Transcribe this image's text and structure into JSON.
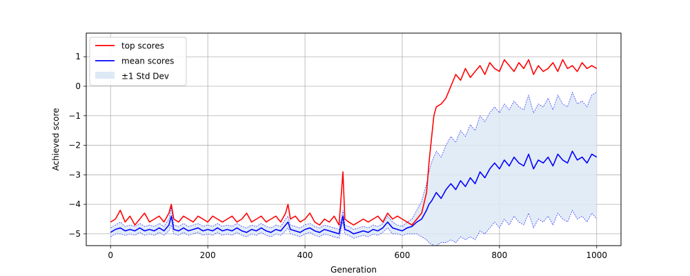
{
  "chart_data": {
    "type": "line",
    "title": "",
    "xlabel": "Generation",
    "ylabel": "Achieved score",
    "xlim": [
      -50,
      1050
    ],
    "ylim": [
      -5.4,
      1.8
    ],
    "xticks": [
      0,
      200,
      400,
      600,
      800,
      1000
    ],
    "yticks": [
      -5,
      -4,
      -3,
      -2,
      -1,
      0,
      1
    ],
    "xtick_labels": [
      "0",
      "200",
      "400",
      "600",
      "800",
      "1000"
    ],
    "ytick_labels": [
      "−5",
      "−4",
      "−3",
      "−2",
      "−1",
      "0",
      "1"
    ],
    "grid": true,
    "legend_position": "top-left",
    "colors": {
      "top": "#ff0000",
      "mean": "#0000ff",
      "band": "#dde9f5"
    },
    "series": [
      {
        "name": "top scores",
        "x": [
          0,
          10,
          20,
          30,
          40,
          50,
          60,
          70,
          80,
          90,
          100,
          110,
          120,
          125,
          130,
          140,
          150,
          160,
          170,
          180,
          190,
          200,
          210,
          220,
          230,
          240,
          250,
          260,
          270,
          280,
          290,
          300,
          310,
          320,
          330,
          340,
          350,
          360,
          365,
          370,
          380,
          390,
          400,
          410,
          420,
          430,
          440,
          450,
          460,
          470,
          478,
          482,
          490,
          500,
          510,
          520,
          530,
          540,
          550,
          560,
          570,
          580,
          590,
          600,
          610,
          620,
          630,
          640,
          650,
          655,
          660,
          665,
          670,
          680,
          690,
          700,
          710,
          720,
          730,
          740,
          750,
          760,
          770,
          780,
          790,
          800,
          810,
          820,
          830,
          840,
          850,
          860,
          870,
          880,
          890,
          900,
          910,
          920,
          930,
          940,
          950,
          960,
          970,
          980,
          990,
          1000
        ],
        "values": [
          -4.6,
          -4.5,
          -4.2,
          -4.6,
          -4.4,
          -4.7,
          -4.5,
          -4.3,
          -4.6,
          -4.5,
          -4.4,
          -4.6,
          -4.3,
          -4.0,
          -4.5,
          -4.6,
          -4.4,
          -4.5,
          -4.6,
          -4.4,
          -4.5,
          -4.6,
          -4.4,
          -4.5,
          -4.6,
          -4.5,
          -4.4,
          -4.6,
          -4.5,
          -4.3,
          -4.6,
          -4.5,
          -4.4,
          -4.6,
          -4.5,
          -4.4,
          -4.6,
          -4.3,
          -4.0,
          -4.5,
          -4.4,
          -4.6,
          -4.5,
          -4.3,
          -4.6,
          -4.7,
          -4.5,
          -4.6,
          -4.4,
          -4.7,
          -2.9,
          -4.5,
          -4.6,
          -4.7,
          -4.6,
          -4.5,
          -4.6,
          -4.5,
          -4.4,
          -4.6,
          -4.3,
          -4.5,
          -4.4,
          -4.5,
          -4.6,
          -4.7,
          -4.5,
          -4.3,
          -3.6,
          -2.6,
          -1.8,
          -1.0,
          -0.7,
          -0.6,
          -0.4,
          0.0,
          0.4,
          0.2,
          0.6,
          0.3,
          0.5,
          0.7,
          0.4,
          0.8,
          0.6,
          0.5,
          0.9,
          0.7,
          0.5,
          0.8,
          0.6,
          0.9,
          0.4,
          0.7,
          0.5,
          0.6,
          0.8,
          0.5,
          0.9,
          0.6,
          0.7,
          0.5,
          0.8,
          0.6,
          0.7,
          0.6
        ]
      },
      {
        "name": "mean scores",
        "x": [
          0,
          10,
          20,
          30,
          40,
          50,
          60,
          70,
          80,
          90,
          100,
          110,
          120,
          125,
          130,
          140,
          150,
          160,
          170,
          180,
          190,
          200,
          210,
          220,
          230,
          240,
          250,
          260,
          270,
          280,
          290,
          300,
          310,
          320,
          330,
          340,
          350,
          360,
          365,
          370,
          380,
          390,
          400,
          410,
          420,
          430,
          440,
          450,
          460,
          470,
          478,
          482,
          490,
          500,
          510,
          520,
          530,
          540,
          550,
          560,
          570,
          580,
          590,
          600,
          610,
          620,
          630,
          640,
          650,
          655,
          660,
          665,
          670,
          680,
          690,
          700,
          710,
          720,
          730,
          740,
          750,
          760,
          770,
          780,
          790,
          800,
          810,
          820,
          830,
          840,
          850,
          860,
          870,
          880,
          890,
          900,
          910,
          920,
          930,
          940,
          950,
          960,
          970,
          980,
          990,
          1000
        ],
        "values": [
          -4.95,
          -4.85,
          -4.8,
          -4.9,
          -4.85,
          -4.9,
          -4.8,
          -4.9,
          -4.85,
          -4.9,
          -4.8,
          -4.9,
          -4.7,
          -4.4,
          -4.85,
          -4.9,
          -4.8,
          -4.9,
          -4.85,
          -4.8,
          -4.9,
          -4.85,
          -4.9,
          -4.8,
          -4.9,
          -4.85,
          -4.9,
          -4.8,
          -4.9,
          -4.95,
          -4.85,
          -4.9,
          -4.8,
          -4.9,
          -4.95,
          -4.85,
          -4.9,
          -4.7,
          -4.6,
          -4.85,
          -4.9,
          -4.95,
          -4.85,
          -4.8,
          -4.9,
          -4.95,
          -4.85,
          -4.9,
          -4.95,
          -5.0,
          -4.4,
          -4.85,
          -4.9,
          -5.0,
          -4.95,
          -4.9,
          -4.95,
          -4.85,
          -4.9,
          -4.8,
          -4.6,
          -4.8,
          -4.85,
          -4.9,
          -4.8,
          -4.75,
          -4.6,
          -4.5,
          -4.2,
          -4.0,
          -3.9,
          -3.75,
          -3.6,
          -3.8,
          -3.5,
          -3.3,
          -3.5,
          -3.2,
          -3.4,
          -3.1,
          -3.3,
          -2.9,
          -3.1,
          -2.8,
          -2.6,
          -2.8,
          -2.5,
          -2.7,
          -2.4,
          -2.6,
          -2.7,
          -2.3,
          -2.8,
          -2.5,
          -2.6,
          -2.4,
          -2.7,
          -2.3,
          -2.5,
          -2.6,
          -2.2,
          -2.5,
          -2.4,
          -2.6,
          -2.3,
          -2.4
        ]
      },
      {
        "name": "±1 Std Dev",
        "x": [
          0,
          10,
          20,
          30,
          40,
          50,
          60,
          70,
          80,
          90,
          100,
          110,
          120,
          125,
          130,
          140,
          150,
          160,
          170,
          180,
          190,
          200,
          210,
          220,
          230,
          240,
          250,
          260,
          270,
          280,
          290,
          300,
          310,
          320,
          330,
          340,
          350,
          360,
          365,
          370,
          380,
          390,
          400,
          410,
          420,
          430,
          440,
          450,
          460,
          470,
          478,
          482,
          490,
          500,
          510,
          520,
          530,
          540,
          550,
          560,
          570,
          580,
          590,
          600,
          610,
          620,
          630,
          640,
          650,
          655,
          660,
          665,
          670,
          680,
          690,
          700,
          710,
          720,
          730,
          740,
          750,
          760,
          770,
          780,
          790,
          800,
          810,
          820,
          830,
          840,
          850,
          860,
          870,
          880,
          890,
          900,
          910,
          920,
          930,
          940,
          950,
          960,
          970,
          980,
          990,
          1000
        ],
        "upper": [
          -4.8,
          -4.7,
          -4.6,
          -4.75,
          -4.7,
          -4.75,
          -4.65,
          -4.75,
          -4.7,
          -4.75,
          -4.65,
          -4.75,
          -4.5,
          -4.1,
          -4.7,
          -4.75,
          -4.65,
          -4.75,
          -4.7,
          -4.65,
          -4.75,
          -4.7,
          -4.75,
          -4.65,
          -4.75,
          -4.7,
          -4.75,
          -4.65,
          -4.75,
          -4.8,
          -4.7,
          -4.75,
          -4.65,
          -4.75,
          -4.8,
          -4.7,
          -4.75,
          -4.5,
          -4.4,
          -4.7,
          -4.75,
          -4.8,
          -4.7,
          -4.65,
          -4.75,
          -4.8,
          -4.7,
          -4.75,
          -4.8,
          -4.85,
          -4.2,
          -4.7,
          -4.75,
          -4.85,
          -4.8,
          -4.75,
          -4.8,
          -4.7,
          -4.75,
          -4.65,
          -4.4,
          -4.6,
          -4.7,
          -4.75,
          -4.6,
          -4.5,
          -4.2,
          -3.9,
          -3.3,
          -2.9,
          -2.6,
          -2.4,
          -2.2,
          -2.4,
          -2.0,
          -1.7,
          -1.9,
          -1.5,
          -1.7,
          -1.3,
          -1.5,
          -1.0,
          -1.2,
          -0.9,
          -0.7,
          -0.9,
          -0.6,
          -0.8,
          -0.5,
          -0.7,
          -0.8,
          -0.3,
          -0.9,
          -0.6,
          -0.7,
          -0.4,
          -0.8,
          -0.3,
          -0.6,
          -0.7,
          -0.2,
          -0.6,
          -0.5,
          -0.7,
          -0.3,
          -0.2
        ],
        "lower": [
          -5.1,
          -5.0,
          -5.0,
          -5.05,
          -5.0,
          -5.05,
          -4.95,
          -5.05,
          -5.0,
          -5.05,
          -4.95,
          -5.05,
          -4.9,
          -4.7,
          -5.0,
          -5.05,
          -4.95,
          -5.05,
          -5.0,
          -4.95,
          -5.05,
          -5.0,
          -5.05,
          -4.95,
          -5.05,
          -5.0,
          -5.05,
          -4.95,
          -5.05,
          -5.1,
          -5.0,
          -5.05,
          -4.95,
          -5.05,
          -5.1,
          -5.0,
          -5.05,
          -4.9,
          -4.8,
          -5.0,
          -5.05,
          -5.1,
          -5.0,
          -4.95,
          -5.05,
          -5.1,
          -5.0,
          -5.05,
          -5.1,
          -5.15,
          -4.6,
          -5.0,
          -5.05,
          -5.15,
          -5.1,
          -5.05,
          -5.1,
          -5.0,
          -5.05,
          -4.95,
          -4.8,
          -5.0,
          -5.0,
          -5.05,
          -5.0,
          -5.0,
          -5.0,
          -5.1,
          -5.2,
          -5.3,
          -5.35,
          -5.4,
          -5.4,
          -5.3,
          -5.3,
          -5.2,
          -5.3,
          -5.1,
          -5.2,
          -5.1,
          -5.2,
          -4.9,
          -5.0,
          -4.8,
          -4.6,
          -4.8,
          -4.5,
          -4.7,
          -4.4,
          -4.6,
          -4.7,
          -4.3,
          -4.8,
          -4.5,
          -4.6,
          -4.4,
          -4.7,
          -4.3,
          -4.5,
          -4.6,
          -4.2,
          -4.5,
          -4.4,
          -4.6,
          -4.3,
          -4.5
        ]
      }
    ]
  }
}
